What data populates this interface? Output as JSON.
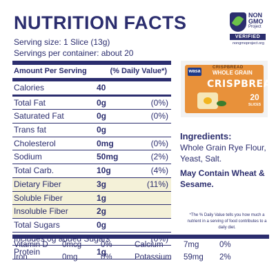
{
  "title": "NUTRITION FACTS",
  "serving": {
    "size": "Serving size: 1 Slice (13g)",
    "per_container": "Servings per container: about 20"
  },
  "badge": {
    "line1": "NON",
    "line2": "GMO",
    "line3": "Project",
    "verified": "VERIFIED",
    "url": "nongmoproject.org"
  },
  "table": {
    "header_amount": "Amount Per Serving",
    "header_dv": "(% Daily Value*)",
    "rows": [
      {
        "label": "Calories",
        "amount": "40",
        "dv": ""
      },
      {
        "label": "Total Fat",
        "amount": "0g",
        "dv": "(0%)"
      },
      {
        "label": "Saturated Fat",
        "amount": "0g",
        "dv": "(0%)"
      },
      {
        "label": "Trans fat",
        "amount": "0g",
        "dv": ""
      },
      {
        "label": "Cholesterol",
        "amount": "0mg",
        "dv": "(0%)"
      },
      {
        "label": "Sodium",
        "amount": "50mg",
        "dv": "(2%)"
      },
      {
        "label": "Total Carb.",
        "amount": "10g",
        "dv": "(4%)"
      },
      {
        "label": "Dietary Fiber",
        "amount": "3g",
        "dv": "(11%)"
      },
      {
        "label": "Soluble Fiber",
        "amount": "1g",
        "dv": ""
      },
      {
        "label": "Insoluble Fiber",
        "amount": "2g",
        "dv": ""
      },
      {
        "label": "Total Sugars",
        "amount": "0g",
        "dv": ""
      },
      {
        "label": "Includes 0g added Sugars",
        "amount": "",
        "dv": "(0%)"
      },
      {
        "label": "Protein",
        "amount": "1g",
        "dv": ""
      }
    ]
  },
  "product": {
    "brand": "wasa",
    "small_text": "CRISPBREAD",
    "variety": "WHOLE GRAIN",
    "name": "CRISPBREAD",
    "count": "20",
    "count_unit": "SLICES"
  },
  "ingredients": {
    "heading": "Ingredients:",
    "text": "Whole Grain Rye Flour, Yeast, Salt."
  },
  "allergen": "May Contain Wheat & Sesame.",
  "dv_note": "*The % Daily Value tells you how much a nutrient in a serving of food contributes to a daily diet.",
  "vitamins": {
    "rows": [
      {
        "n1": "Vitamin D",
        "a1": "0mcg",
        "p1": "0%",
        "n2": "Calcium",
        "a2": "7mg",
        "p2": "0%"
      },
      {
        "n1": "Iron",
        "a1": "0mg",
        "p1": "0%",
        "n2": "Potassium",
        "a2": "59mg",
        "p2": "2%"
      }
    ]
  },
  "colors": {
    "navy": "#2b2d6e",
    "highlight": "#f4f1d8",
    "box_orange": "#e8913a",
    "badge_green": "#6cc04a"
  }
}
